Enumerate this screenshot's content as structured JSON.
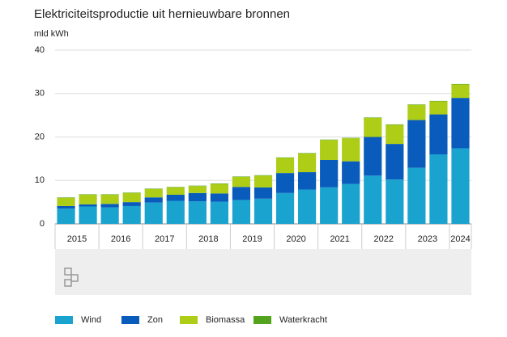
{
  "chart_data": {
    "type": "stacked_bar",
    "title": "Elektriciteitsproductie uit hernieuwbare bronnen",
    "y_label": "mld kWh",
    "categories": [
      "2015",
      null,
      "2016",
      null,
      "2017",
      null,
      "2018",
      null,
      "2019",
      null,
      "2020",
      null,
      "2021",
      null,
      "2022",
      null,
      "2023",
      null,
      "2024"
    ],
    "series": [
      {
        "name": "Wind",
        "color": "#1ba3cf",
        "values": [
          3.5,
          4.0,
          3.8,
          4.1,
          4.9,
          5.3,
          5.2,
          5.1,
          5.5,
          5.8,
          7.1,
          7.9,
          8.4,
          9.2,
          11.1,
          10.2,
          12.9,
          16.0,
          17.4
        ]
      },
      {
        "name": "Zon",
        "color": "#0a5cbc",
        "values": [
          0.6,
          0.5,
          0.8,
          0.9,
          1.2,
          1.4,
          1.9,
          1.9,
          3.0,
          2.6,
          4.6,
          4.0,
          6.3,
          5.2,
          8.9,
          8.2,
          11.0,
          9.2,
          11.6
        ]
      },
      {
        "name": "Biomassa",
        "color": "#aecd16",
        "values": [
          1.9,
          2.2,
          2.1,
          2.1,
          1.9,
          1.7,
          1.6,
          2.2,
          2.3,
          2.7,
          3.5,
          4.3,
          4.6,
          5.3,
          4.4,
          4.4,
          3.5,
          3.0,
          3.1
        ]
      },
      {
        "name": "Waterkracht",
        "color": "#53a31d",
        "values": [
          0.1,
          0.1,
          0.1,
          0.1,
          0.1,
          0.1,
          0.1,
          0.1,
          0.1,
          0.1,
          0.1,
          0.1,
          0.1,
          0.1,
          0.1,
          0.1,
          0.1,
          0.1,
          0.1
        ]
      }
    ],
    "ylim": [
      0,
      40
    ],
    "yticks": [
      0,
      10,
      20,
      30,
      40
    ],
    "grid": true
  }
}
